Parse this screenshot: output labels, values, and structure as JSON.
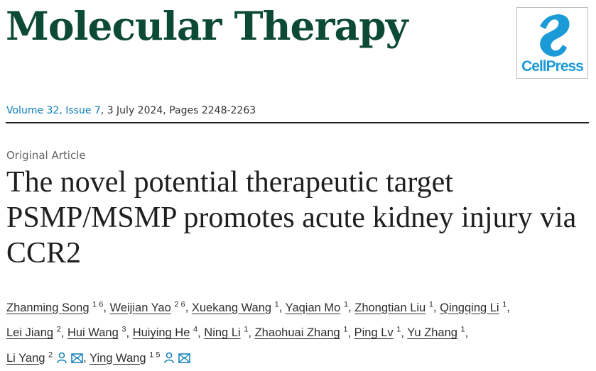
{
  "journal": {
    "title": "Molecular Therapy",
    "publisher_logo": "CellPress"
  },
  "volume": {
    "volume_link": "Volume 32, Issue 7",
    "rest": ", 3 July 2024, Pages 2248-2263"
  },
  "article": {
    "type": "Original Article",
    "title": "The novel potential therapeutic target PSMP/MSMP promotes acute kidney injury via CCR2"
  },
  "authors": [
    {
      "name": "Zhanming Song",
      "aff": "1 6"
    },
    {
      "name": "Weijian Yao",
      "aff": "2 6"
    },
    {
      "name": "Xuekang Wang",
      "aff": "1"
    },
    {
      "name": "Yaqian Mo",
      "aff": "1"
    },
    {
      "name": "Zhongtian Liu",
      "aff": "1"
    },
    {
      "name": "Qingqing Li",
      "aff": "1"
    },
    {
      "name": "Lei Jiang",
      "aff": "2"
    },
    {
      "name": "Hui Wang",
      "aff": "3"
    },
    {
      "name": "Huiying He",
      "aff": "4"
    },
    {
      "name": "Ning Li",
      "aff": "1"
    },
    {
      "name": "Zhaohuai Zhang",
      "aff": "1"
    },
    {
      "name": "Ping Lv",
      "aff": "1"
    },
    {
      "name": "Yu Zhang",
      "aff": "1"
    },
    {
      "name": "Li Yang",
      "aff": "2",
      "icons": [
        "person-icon",
        "envelope-icon"
      ]
    },
    {
      "name": "Ying Wang",
      "aff": "1 5",
      "icons": [
        "person-icon",
        "envelope-icon"
      ]
    }
  ],
  "colors": {
    "journal": "#0d4a36",
    "link": "#0c7dbb",
    "logo": "#1a9ad6"
  }
}
